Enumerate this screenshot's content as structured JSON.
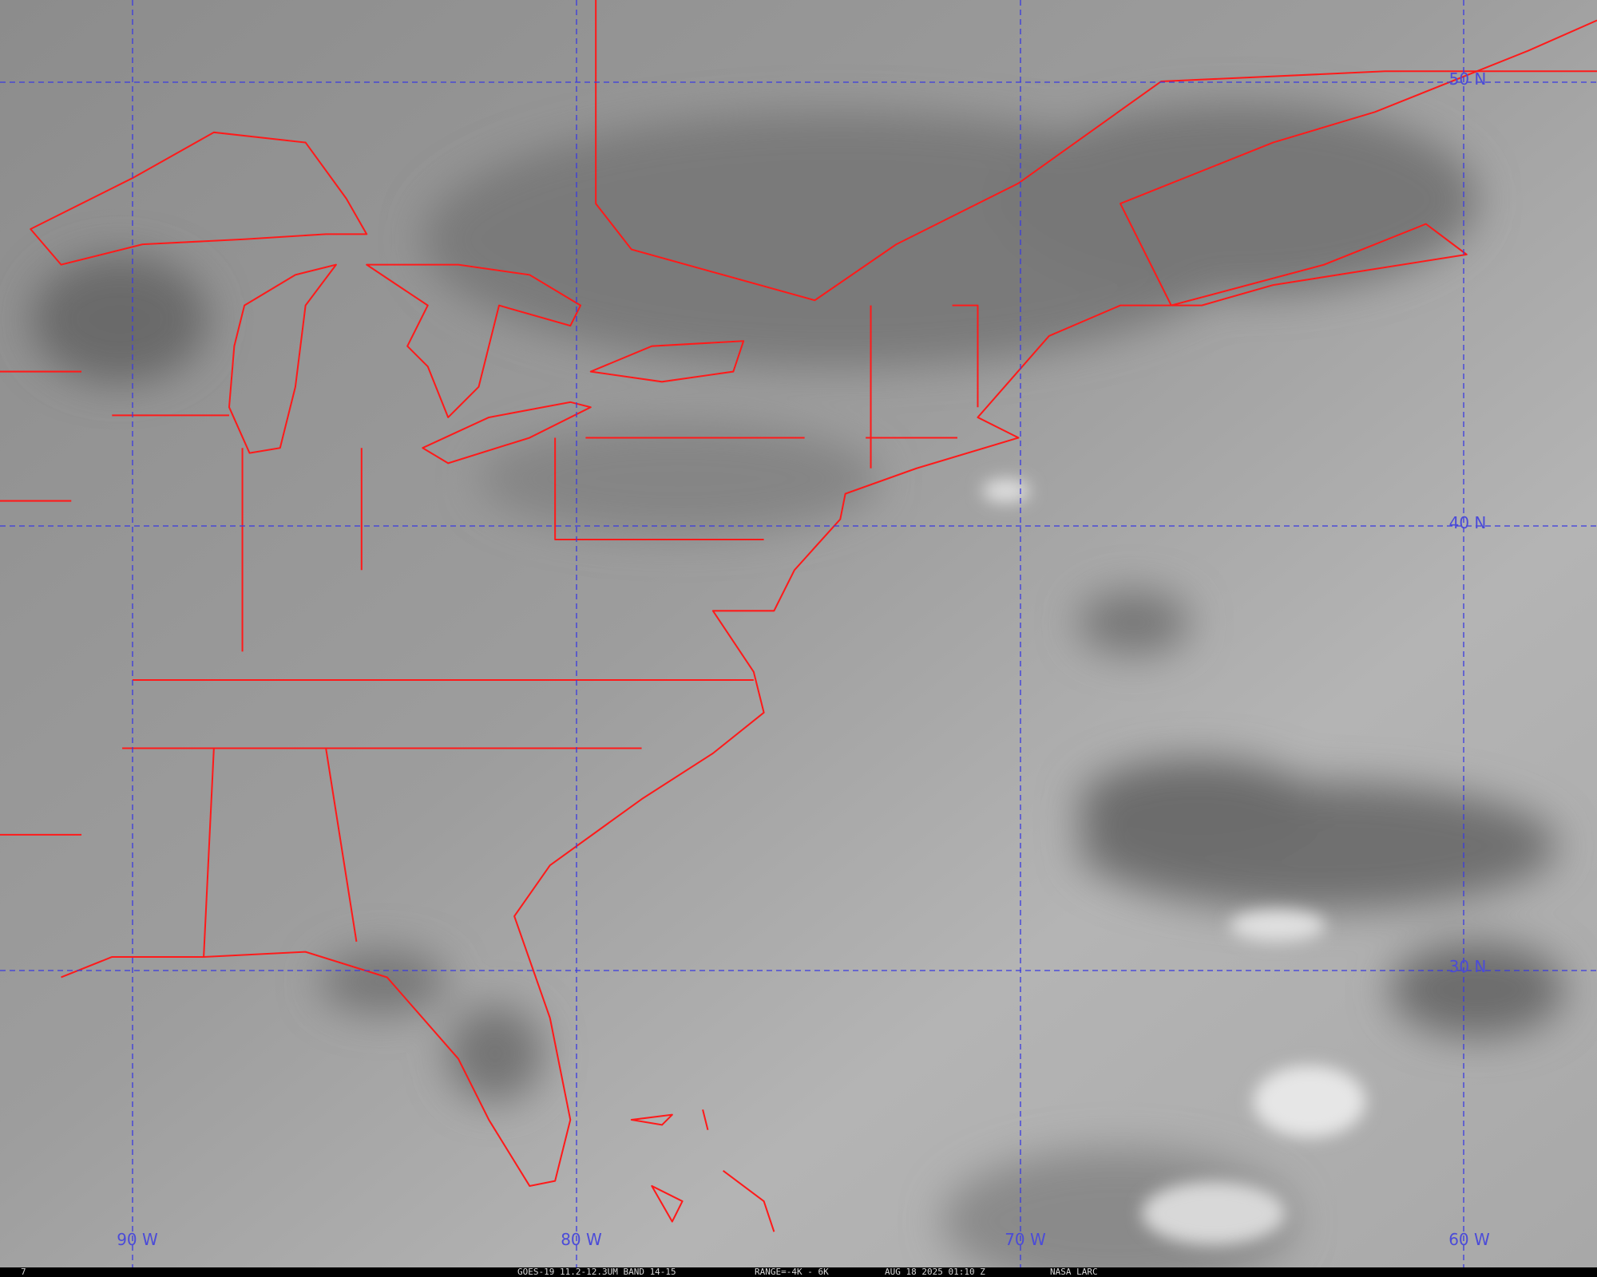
{
  "grid_labels": {
    "latitude": [
      "50 N",
      "40 N",
      "30 N"
    ],
    "longitude": [
      "90 W",
      "80 W",
      "70 W",
      "60 W"
    ]
  },
  "footer": {
    "corner": "7",
    "satellite": "GOES-19 11.2-12.3UM BAND 14-15",
    "range": "RANGE=-4K - 6K",
    "time": "AUG 18 2025 01:10 Z",
    "source": "NASA LARC"
  }
}
